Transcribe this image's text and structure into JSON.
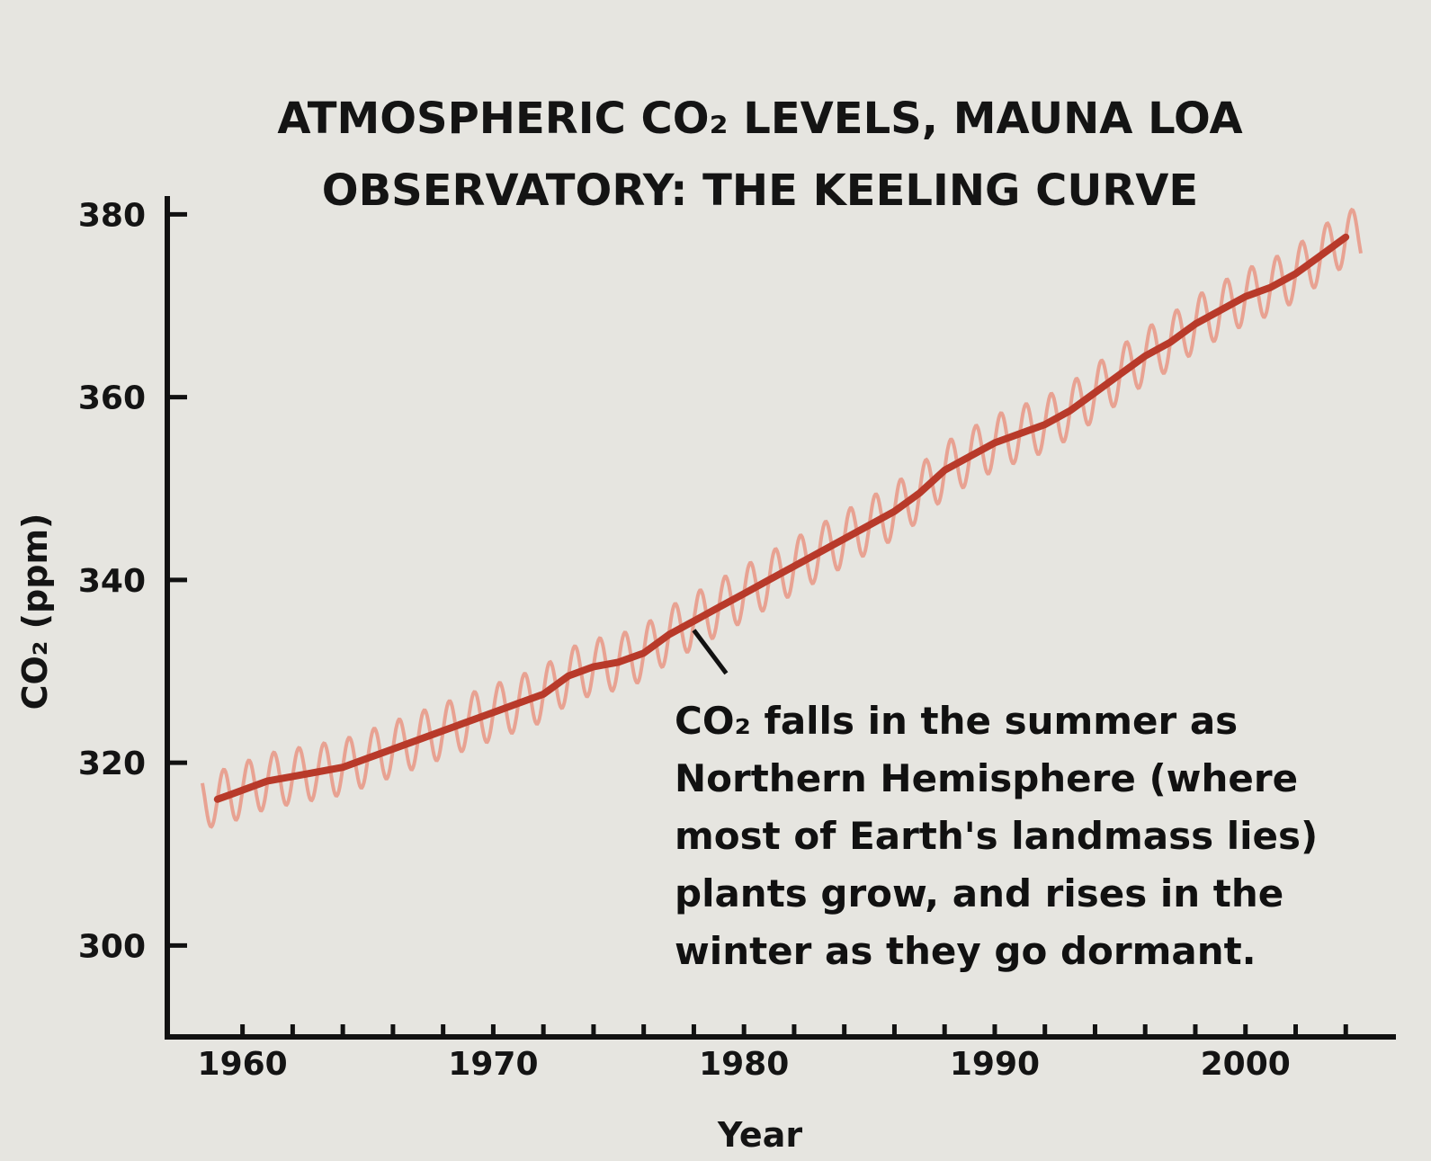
{
  "chart_data": {
    "type": "line",
    "title_lines": [
      "ATMOSPHERIC CO₂ LEVELS, MAUNA LOA",
      "OBSERVATORY: THE KEELING CURVE"
    ],
    "xlabel": "Year",
    "ylabel": "CO₂ (ppm)",
    "xlim": [
      1957,
      2006
    ],
    "ylim": [
      290,
      382
    ],
    "x_ticks": [
      1960,
      1970,
      1980,
      1990,
      2000
    ],
    "y_ticks": [
      300,
      320,
      340,
      360,
      380
    ],
    "grid": false,
    "colors": {
      "trend": "#b83a2a",
      "seasonal": "#e89a8a",
      "axis": "#111111"
    },
    "series": [
      {
        "name": "",
        "kind": "seasonal-cycle",
        "amplitude_ppm": 3,
        "x": [
          1959,
          1960,
          1961,
          1962,
          1963,
          1964,
          1965,
          1966,
          1967,
          1968,
          1969,
          1970,
          1971,
          1972,
          1973,
          1974,
          1975,
          1976,
          1977,
          1978,
          1979,
          1980,
          1981,
          1982,
          1983,
          1984,
          1985,
          1986,
          1987,
          1988,
          1989,
          1990,
          1991,
          1992,
          1993,
          1994,
          1995,
          1996,
          1997,
          1998,
          1999,
          2000,
          2001,
          2002,
          2003,
          2004
        ],
        "y": [
          316,
          317,
          318,
          318.5,
          319,
          319.5,
          320.5,
          321.5,
          322.5,
          323.5,
          324.5,
          325.5,
          326.5,
          327.5,
          329.5,
          330.5,
          331,
          332,
          334,
          335.5,
          337,
          338.5,
          340,
          341.5,
          343,
          344.5,
          346,
          347.5,
          349.5,
          352,
          353.5,
          355,
          356,
          357,
          358.5,
          360.5,
          362.5,
          364.5,
          366,
          368,
          369.5,
          371,
          372,
          373.5,
          375.5,
          377.5
        ]
      },
      {
        "name": "",
        "kind": "trend",
        "x": [
          1959,
          1960,
          1961,
          1962,
          1963,
          1964,
          1965,
          1966,
          1967,
          1968,
          1969,
          1970,
          1971,
          1972,
          1973,
          1974,
          1975,
          1976,
          1977,
          1978,
          1979,
          1980,
          1981,
          1982,
          1983,
          1984,
          1985,
          1986,
          1987,
          1988,
          1989,
          1990,
          1991,
          1992,
          1993,
          1994,
          1995,
          1996,
          1997,
          1998,
          1999,
          2000,
          2001,
          2002,
          2003,
          2004
        ],
        "y": [
          316,
          317,
          318,
          318.5,
          319,
          319.5,
          320.5,
          321.5,
          322.5,
          323.5,
          324.5,
          325.5,
          326.5,
          327.5,
          329.5,
          330.5,
          331,
          332,
          334,
          335.5,
          337,
          338.5,
          340,
          341.5,
          343,
          344.5,
          346,
          347.5,
          349.5,
          352,
          353.5,
          355,
          356,
          357,
          358.5,
          360.5,
          362.5,
          364.5,
          366,
          368,
          369.5,
          371,
          372,
          373.5,
          375.5,
          377.5
        ]
      }
    ],
    "annotation": {
      "point": {
        "x": 1978,
        "y": 334.5
      },
      "lines": [
        "CO₂ falls in the summer as",
        "Northern Hemisphere (where",
        "most of Earth's landmass lies)",
        "plants grow, and rises in the",
        "winter as they go dormant."
      ]
    }
  }
}
